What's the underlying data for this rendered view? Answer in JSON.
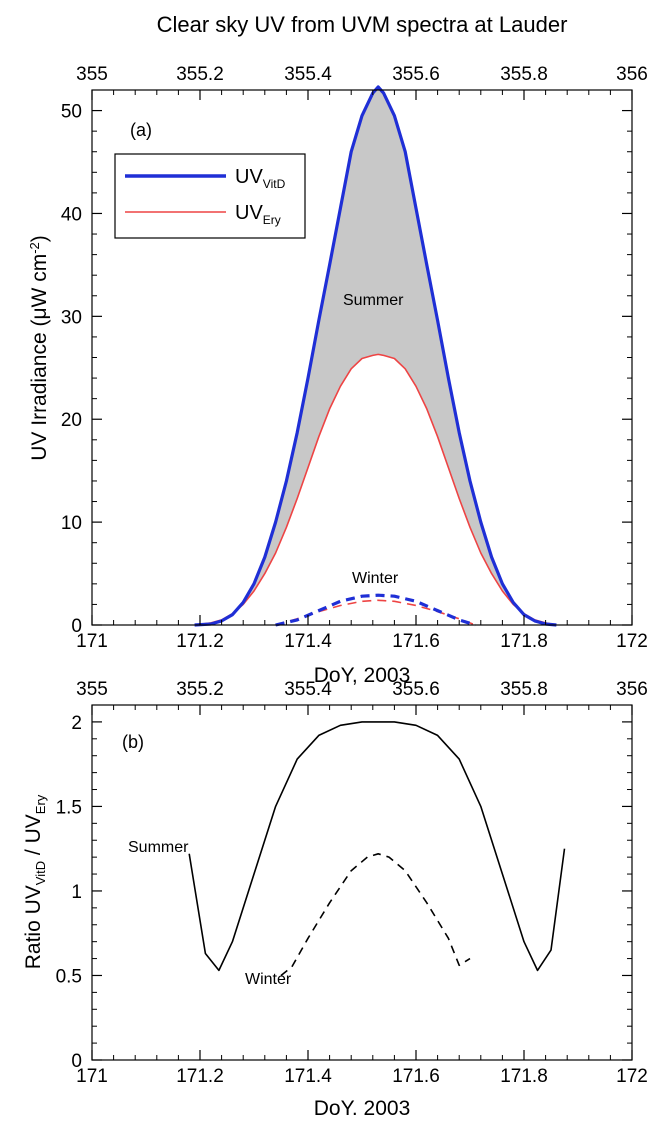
{
  "figure": {
    "title": "Clear sky  UV from UVM spectra at Lauder"
  },
  "chart_data": [
    {
      "panel": "(a)",
      "type": "area",
      "xlabel": "DoY, 2003",
      "x2label": "",
      "ylabel": "UV Irradiance (μW cm",
      "ylabel_sup": "-2",
      "ylabel_end": ")",
      "xlim": [
        171,
        172
      ],
      "x2lim": [
        355,
        356
      ],
      "ylim": [
        0,
        52
      ],
      "xticks": [
        "171",
        "171.2",
        "171.4",
        "171.6",
        "171.8",
        "172"
      ],
      "x2ticks": [
        "355",
        "355.2",
        "355.4",
        "355.6",
        "355.8",
        "356"
      ],
      "yticks": [
        "0",
        "10",
        "20",
        "30",
        "40",
        "50"
      ],
      "grid": false,
      "legend_position": "upper-left",
      "legend": [
        {
          "base": "UV",
          "sub": "VitD",
          "color": "#1f2fd6"
        },
        {
          "base": "UV",
          "sub": "Ery",
          "color": "#ee4444"
        }
      ],
      "annotations": [
        "Summer",
        "Winter"
      ],
      "fill_between_color": "#c8c8c8",
      "series": [
        {
          "name": "Summer UVVitD",
          "color": "#1f2fd6",
          "style": "solid",
          "x": [
            171.19,
            171.22,
            171.24,
            171.26,
            171.28,
            171.3,
            171.32,
            171.34,
            171.36,
            171.38,
            171.4,
            171.42,
            171.44,
            171.46,
            171.48,
            171.5,
            171.52,
            171.53,
            171.54,
            171.56,
            171.58,
            171.6,
            171.62,
            171.64,
            171.66,
            171.68,
            171.7,
            171.72,
            171.74,
            171.76,
            171.78,
            171.8,
            171.82,
            171.84,
            171.86
          ],
          "y": [
            0.0,
            0.1,
            0.4,
            1.0,
            2.2,
            4.0,
            6.6,
            10.0,
            14.0,
            18.7,
            24.0,
            29.6,
            35.0,
            40.5,
            46.0,
            49.5,
            51.7,
            52.3,
            51.7,
            49.5,
            46.0,
            40.5,
            35.0,
            29.6,
            24.0,
            18.7,
            14.0,
            10.0,
            6.6,
            4.0,
            2.2,
            1.0,
            0.4,
            0.1,
            0.0
          ]
        },
        {
          "name": "Summer UVEry",
          "color": "#ee4444",
          "style": "solid",
          "x": [
            171.19,
            171.22,
            171.24,
            171.26,
            171.28,
            171.3,
            171.32,
            171.34,
            171.36,
            171.38,
            171.4,
            171.42,
            171.44,
            171.46,
            171.48,
            171.5,
            171.52,
            171.53,
            171.54,
            171.56,
            171.58,
            171.6,
            171.62,
            171.64,
            171.66,
            171.68,
            171.7,
            171.72,
            171.74,
            171.76,
            171.78,
            171.8,
            171.82,
            171.84,
            171.86
          ],
          "y": [
            0.0,
            0.2,
            0.5,
            1.1,
            2.0,
            3.3,
            5.0,
            7.0,
            9.5,
            12.3,
            15.3,
            18.3,
            21.0,
            23.2,
            24.9,
            25.9,
            26.2,
            26.3,
            26.2,
            25.9,
            24.9,
            23.2,
            21.0,
            18.3,
            15.3,
            12.3,
            9.5,
            7.0,
            5.0,
            3.3,
            2.0,
            1.1,
            0.5,
            0.2,
            0.0
          ]
        },
        {
          "name": "Winter UVVitD",
          "color": "#1f2fd6",
          "style": "dashed",
          "x": [
            171.34,
            171.38,
            171.42,
            171.46,
            171.5,
            171.53,
            171.56,
            171.6,
            171.64,
            171.68,
            171.71
          ],
          "y": [
            0.0,
            0.5,
            1.4,
            2.3,
            2.8,
            2.9,
            2.8,
            2.3,
            1.4,
            0.5,
            0.0
          ]
        },
        {
          "name": "Winter UVEry",
          "color": "#ee4444",
          "style": "dashed",
          "x": [
            171.34,
            171.38,
            171.42,
            171.46,
            171.5,
            171.53,
            171.56,
            171.6,
            171.64,
            171.68,
            171.71
          ],
          "y": [
            0.0,
            0.6,
            1.3,
            1.9,
            2.3,
            2.4,
            2.3,
            1.9,
            1.3,
            0.6,
            0.0
          ]
        }
      ]
    },
    {
      "panel": "(b)",
      "type": "line",
      "xlabel": "DoY. 2003",
      "ylabel_parts": {
        "prefix": "Ratio UV",
        "sub1": "VitD",
        "mid": " / UV",
        "sub2": "Ery"
      },
      "xlim": [
        171,
        172
      ],
      "x2lim": [
        355,
        356
      ],
      "ylim": [
        0,
        2.1
      ],
      "xticks": [
        "171",
        "171.2",
        "171.4",
        "171.6",
        "171.8",
        "172"
      ],
      "x2ticks": [
        "355",
        "355.2",
        "355.4",
        "355.6",
        "355.8",
        "356"
      ],
      "yticks": [
        "0",
        "0.5",
        "1",
        "1.5",
        "2"
      ],
      "grid": false,
      "annotations": [
        "Summer",
        "Winter"
      ],
      "series": [
        {
          "name": "Summer",
          "color": "#000000",
          "style": "solid",
          "x": [
            171.18,
            171.21,
            171.235,
            171.26,
            171.3,
            171.34,
            171.38,
            171.42,
            171.46,
            171.5,
            171.53,
            171.56,
            171.6,
            171.64,
            171.68,
            171.72,
            171.76,
            171.8,
            171.825,
            171.85,
            171.875
          ],
          "y": [
            1.22,
            0.63,
            0.53,
            0.7,
            1.1,
            1.5,
            1.78,
            1.92,
            1.98,
            2.0,
            2.0,
            2.0,
            1.98,
            1.92,
            1.78,
            1.5,
            1.1,
            0.7,
            0.53,
            0.65,
            1.25
          ]
        },
        {
          "name": "Winter",
          "color": "#000000",
          "style": "dashed",
          "x": [
            171.35,
            171.37,
            171.4,
            171.44,
            171.48,
            171.51,
            171.53,
            171.55,
            171.58,
            171.62,
            171.66,
            171.68,
            171.7
          ],
          "y": [
            0.5,
            0.55,
            0.72,
            0.93,
            1.12,
            1.2,
            1.22,
            1.2,
            1.12,
            0.93,
            0.72,
            0.56,
            0.6
          ]
        }
      ]
    }
  ]
}
